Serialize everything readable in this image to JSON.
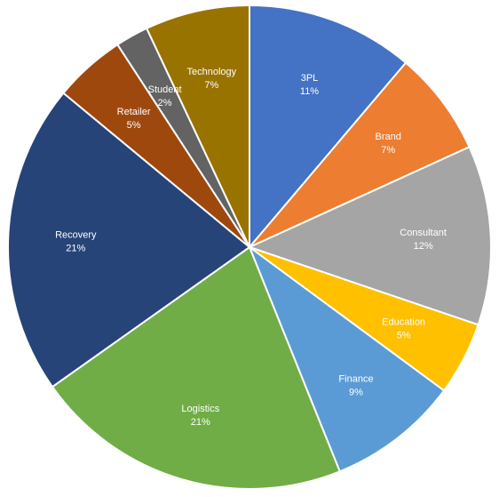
{
  "chart_data": {
    "type": "pie",
    "title": "",
    "start_angle_deg": 0,
    "direction": "clockwise",
    "slices": [
      {
        "label": "3PL",
        "pct_label": "11%",
        "value": 11.2,
        "color": "#4472C4"
      },
      {
        "label": "Brand",
        "pct_label": "7%",
        "value": 7.0,
        "color": "#ED7D31"
      },
      {
        "label": "Consultant",
        "pct_label": "12%",
        "value": 12.0,
        "color": "#A5A5A5"
      },
      {
        "label": "Education",
        "pct_label": "5%",
        "value": 4.9,
        "color": "#FFC000"
      },
      {
        "label": "Finance",
        "pct_label": "9%",
        "value": 8.8,
        "color": "#5B9BD5"
      },
      {
        "label": "Logistics",
        "pct_label": "21%",
        "value": 21.3,
        "color": "#70AD47"
      },
      {
        "label": "Recovery",
        "pct_label": "21%",
        "value": 20.8,
        "color": "#264478"
      },
      {
        "label": "Retailer",
        "pct_label": "5%",
        "value": 4.8,
        "color": "#9E480E"
      },
      {
        "label": "Student",
        "pct_label": "2%",
        "value": 2.2,
        "color": "#636363"
      },
      {
        "label": "Technology",
        "pct_label": "7%",
        "value": 7.0,
        "color": "#997300"
      }
    ]
  }
}
